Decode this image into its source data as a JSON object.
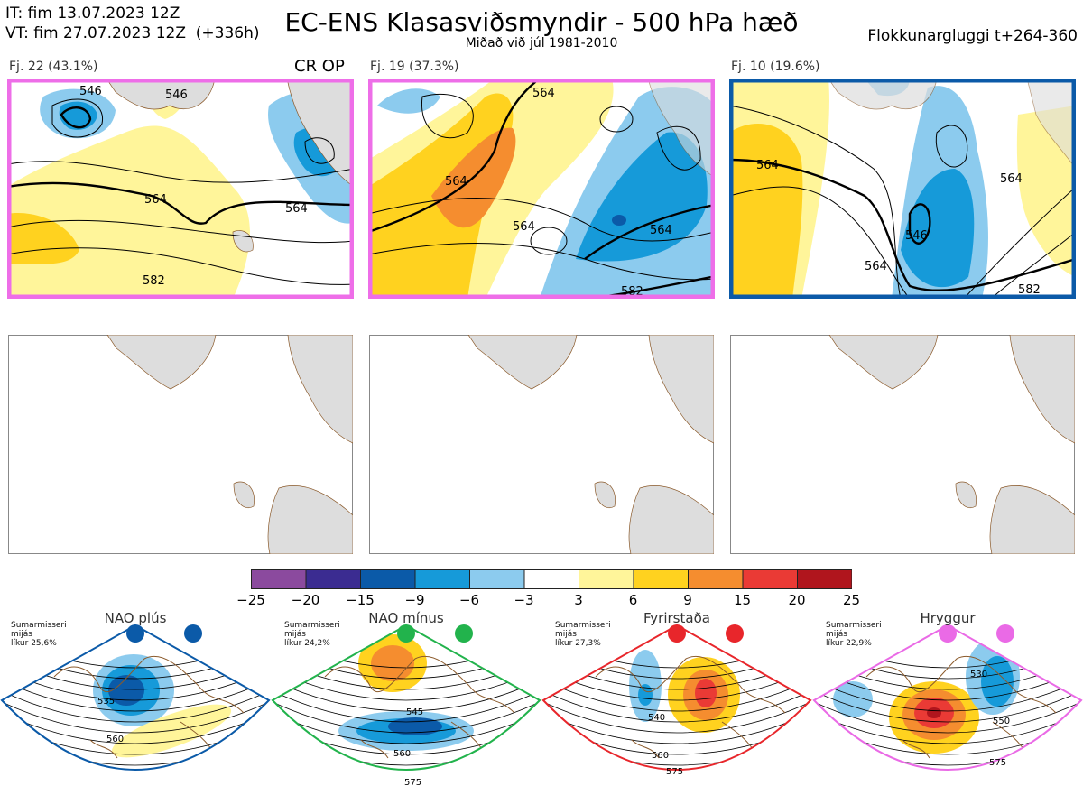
{
  "header": {
    "initial_time": "IT: fim 13.07.2023 12Z",
    "valid_time": "VT: fim 27.07.2023 12Z  (+336h)",
    "title": "EC-ENS Klasasviðsmyndir - 500 hPa hæð",
    "subtitle": "Miðað við júl 1981-2010",
    "window": "Flokkunargluggi t+264-360"
  },
  "clusters": [
    {
      "label": "Fj. 22 (43.1%)",
      "marker": "CR OP",
      "frame_color": "#ee6ee8",
      "contours": [
        "546",
        "564",
        "582",
        "546",
        "564"
      ]
    },
    {
      "label": "Fj. 19 (37.3%)",
      "marker": "",
      "frame_color": "#ee6ee8",
      "contours": [
        "564",
        "564",
        "564",
        "582",
        "564"
      ]
    },
    {
      "label": "Fj. 10 (19.6%)",
      "marker": "",
      "frame_color": "#0b5aa8",
      "contours": [
        "564",
        "546",
        "564",
        "564",
        "582"
      ]
    }
  ],
  "colorbar": {
    "labels": [
      "−25",
      "−20",
      "−15",
      "−9",
      "−6",
      "−3",
      "3",
      "6",
      "9",
      "15",
      "20",
      "25"
    ],
    "colors": [
      "#8b4a9e",
      "#3b2c91",
      "#0b5aa8",
      "#169ad9",
      "#8ccbee",
      "#ffffff",
      "#fff59a",
      "#ffd21f",
      "#f58d2f",
      "#ea3a35",
      "#b0151d"
    ]
  },
  "regimes": [
    {
      "name": "NAO plús",
      "season": "Sumarmisseri",
      "scope": "mijás",
      "prob": "líkur 25,6%",
      "color": "#0b5aa8",
      "contours": [
        "535",
        "560"
      ]
    },
    {
      "name": "NAO mínus",
      "season": "Sumarmisseri",
      "scope": "mijás",
      "prob": "líkur 24,2%",
      "color": "#22b34c",
      "contours": [
        "545",
        "560",
        "575"
      ]
    },
    {
      "name": "Fyrirstaða",
      "season": "Sumarmisseri",
      "scope": "mijás",
      "prob": "líkur 27,3%",
      "color": "#e8262b",
      "contours": [
        "540",
        "560",
        "575"
      ]
    },
    {
      "name": "Hryggur",
      "season": "Sumarmisseri",
      "scope": "mijás",
      "prob": "líkur 22,9%",
      "color": "#ea6ae6",
      "contours": [
        "530",
        "550",
        "575"
      ]
    }
  ]
}
